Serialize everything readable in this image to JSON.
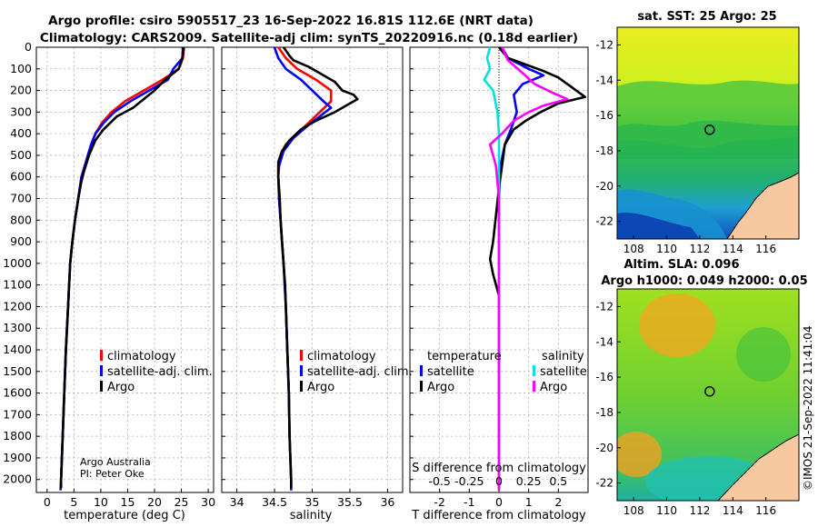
{
  "title": {
    "line1": "Argo profile: csiro 5905517_23 16-Sep-2022 16.81S 112.6E (NRT data)",
    "line2": "Climatology: CARS2009. Satellite-adj clim: synTS_20220916.nc (0.18d earlier)"
  },
  "credit": {
    "line1": "Argo Australia",
    "line2": "PI: Peter Oke"
  },
  "timestamp": "©IMOS 21-Sep-2022 11:41:04",
  "colors": {
    "climatology": "#ff0000",
    "satellite_adj": "#0000ff",
    "argo": "#000000",
    "sat_T": "#0000ff",
    "sat_S": "#00e0e0",
    "argo_S": "#ff00ff",
    "land": "#f8c8a0"
  },
  "chart_data": [
    {
      "type": "line",
      "panel": "temperature",
      "xlabel": "temperature (deg C)",
      "ylabel": "",
      "xlim": [
        -2,
        31
      ],
      "ylim": [
        2060,
        0
      ],
      "xticks": [
        0,
        5,
        10,
        15,
        20,
        25,
        30
      ],
      "yticks": [
        0,
        100,
        200,
        300,
        400,
        500,
        600,
        700,
        800,
        900,
        1000,
        1100,
        1200,
        1300,
        1400,
        1500,
        1600,
        1700,
        1800,
        1900,
        2000
      ],
      "legend": [
        "climatology",
        "satellite-adj. clim.",
        "Argo"
      ],
      "series": [
        {
          "name": "climatology",
          "color": "#ff0000",
          "points": [
            [
              25.5,
              0
            ],
            [
              25.3,
              50
            ],
            [
              24.5,
              100
            ],
            [
              21.5,
              150
            ],
            [
              18,
              200
            ],
            [
              14.5,
              250
            ],
            [
              12,
              300
            ],
            [
              10.2,
              350
            ],
            [
              9,
              400
            ],
            [
              8.2,
              450
            ],
            [
              7.6,
              500
            ],
            [
              7,
              550
            ],
            [
              6.4,
              600
            ],
            [
              5.8,
              700
            ],
            [
              5.2,
              800
            ],
            [
              4.7,
              900
            ],
            [
              4.3,
              1000
            ],
            [
              3.9,
              1200
            ],
            [
              3.5,
              1400
            ],
            [
              3.2,
              1600
            ],
            [
              2.9,
              1800
            ],
            [
              2.6,
              2000
            ],
            [
              2.5,
              2050
            ]
          ]
        },
        {
          "name": "satellite-adj. clim.",
          "color": "#0000ff",
          "points": [
            [
              25.3,
              0
            ],
            [
              25.2,
              50
            ],
            [
              23.5,
              100
            ],
            [
              22.5,
              150
            ],
            [
              19,
              200
            ],
            [
              15.5,
              250
            ],
            [
              12.5,
              300
            ],
            [
              10.5,
              350
            ],
            [
              9,
              400
            ],
            [
              8.2,
              450
            ],
            [
              7.6,
              500
            ],
            [
              7,
              550
            ],
            [
              6.4,
              600
            ],
            [
              5.8,
              700
            ],
            [
              5.2,
              800
            ],
            [
              4.7,
              900
            ],
            [
              4.3,
              1000
            ],
            [
              3.9,
              1200
            ],
            [
              3.5,
              1400
            ],
            [
              3.2,
              1600
            ],
            [
              2.9,
              1800
            ],
            [
              2.6,
              2000
            ],
            [
              2.5,
              2050
            ]
          ]
        },
        {
          "name": "Argo",
          "color": "#000000",
          "points": [
            [
              25.4,
              0
            ],
            [
              25.2,
              50
            ],
            [
              24.5,
              100
            ],
            [
              22,
              150
            ],
            [
              20,
              200
            ],
            [
              17.5,
              250
            ],
            [
              16,
              280
            ],
            [
              13,
              320
            ],
            [
              10.5,
              380
            ],
            [
              9,
              430
            ],
            [
              7.8,
              500
            ],
            [
              6.8,
              580
            ],
            [
              6.4,
              620
            ],
            [
              5.8,
              700
            ],
            [
              5.2,
              800
            ],
            [
              4.7,
              900
            ],
            [
              4.3,
              1000
            ],
            [
              3.9,
              1200
            ],
            [
              3.5,
              1400
            ],
            [
              3.2,
              1600
            ],
            [
              2.9,
              1800
            ],
            [
              2.6,
              2000
            ],
            [
              2.6,
              2040
            ]
          ]
        }
      ]
    },
    {
      "type": "line",
      "panel": "salinity",
      "xlabel": "salinity",
      "xlim": [
        33.8,
        36.2
      ],
      "ylim": [
        2060,
        0
      ],
      "xticks": [
        34,
        34.5,
        35,
        35.5,
        36
      ],
      "legend": [
        "climatology",
        "satellite-adj. clim.",
        "Argo"
      ],
      "series": [
        {
          "name": "climatology",
          "color": "#ff0000",
          "points": [
            [
              34.55,
              0
            ],
            [
              34.65,
              50
            ],
            [
              34.8,
              100
            ],
            [
              35.05,
              150
            ],
            [
              35.25,
              200
            ],
            [
              35.25,
              250
            ],
            [
              35.1,
              300
            ],
            [
              34.95,
              350
            ],
            [
              34.8,
              400
            ],
            [
              34.65,
              450
            ],
            [
              34.58,
              500
            ],
            [
              34.55,
              550
            ],
            [
              34.55,
              600
            ],
            [
              34.56,
              700
            ],
            [
              34.58,
              800
            ],
            [
              34.6,
              900
            ],
            [
              34.62,
              1000
            ],
            [
              34.65,
              1200
            ],
            [
              34.67,
              1400
            ],
            [
              34.69,
              1600
            ],
            [
              34.7,
              1800
            ],
            [
              34.72,
              2000
            ],
            [
              34.72,
              2050
            ]
          ]
        },
        {
          "name": "satellite-adj. clim.",
          "color": "#0000ff",
          "points": [
            [
              34.5,
              0
            ],
            [
              34.55,
              50
            ],
            [
              34.65,
              100
            ],
            [
              34.85,
              150
            ],
            [
              35,
              200
            ],
            [
              35.15,
              250
            ],
            [
              35.25,
              280
            ],
            [
              35.1,
              320
            ],
            [
              34.95,
              360
            ],
            [
              34.75,
              420
            ],
            [
              34.62,
              480
            ],
            [
              34.56,
              550
            ],
            [
              34.55,
              600
            ],
            [
              34.56,
              700
            ],
            [
              34.58,
              800
            ],
            [
              34.6,
              900
            ],
            [
              34.62,
              1000
            ],
            [
              34.65,
              1200
            ],
            [
              34.67,
              1400
            ],
            [
              34.69,
              1600
            ],
            [
              34.7,
              1800
            ],
            [
              34.72,
              2000
            ],
            [
              34.72,
              2050
            ]
          ]
        },
        {
          "name": "Argo",
          "color": "#000000",
          "points": [
            [
              34.62,
              0
            ],
            [
              34.7,
              40
            ],
            [
              34.75,
              60
            ],
            [
              34.95,
              90
            ],
            [
              35.1,
              120
            ],
            [
              35.3,
              160
            ],
            [
              35.4,
              200
            ],
            [
              35.55,
              220
            ],
            [
              35.6,
              240
            ],
            [
              35.45,
              270
            ],
            [
              35.3,
              300
            ],
            [
              35.05,
              340
            ],
            [
              34.85,
              380
            ],
            [
              34.7,
              430
            ],
            [
              34.6,
              480
            ],
            [
              34.55,
              530
            ],
            [
              34.55,
              600
            ],
            [
              34.57,
              700
            ],
            [
              34.58,
              800
            ],
            [
              34.6,
              900
            ],
            [
              34.62,
              1000
            ],
            [
              34.64,
              1100
            ],
            [
              34.65,
              1200
            ],
            [
              34.67,
              1400
            ],
            [
              34.69,
              1600
            ],
            [
              34.7,
              1800
            ],
            [
              34.72,
              2000
            ],
            [
              34.72,
              2040
            ]
          ]
        }
      ]
    },
    {
      "type": "line",
      "panel": "difference",
      "xlabel": "T difference from climatology",
      "xlabel2": "S difference from climatology",
      "xlim": [
        -3,
        3
      ],
      "ylim": [
        2060,
        0
      ],
      "xticks": [
        -2,
        -1,
        0,
        1,
        2
      ],
      "xticks_S": [
        -0.5,
        -0.25,
        0,
        0.25,
        0.5
      ],
      "xticklabels_S": [
        "-0.5",
        "-0.25",
        "0",
        "0.25",
        "0.5"
      ],
      "legend_T": {
        "title": "temperature",
        "items": [
          "satellite",
          "Argo"
        ]
      },
      "legend_S": {
        "title": "salinity",
        "items": [
          "satellite",
          "Argo"
        ]
      },
      "series": [
        {
          "name": "T satellite",
          "color": "#0000ff",
          "points": [
            [
              0.1,
              0
            ],
            [
              0.3,
              50
            ],
            [
              1,
              100
            ],
            [
              1.5,
              130
            ],
            [
              0.8,
              170
            ],
            [
              0.5,
              220
            ],
            [
              0.6,
              300
            ],
            [
              0.4,
              380
            ],
            [
              0.2,
              450
            ],
            [
              0.05,
              550
            ],
            [
              0,
              700
            ],
            [
              0,
              2050
            ]
          ]
        },
        {
          "name": "T Argo",
          "color": "#000000",
          "points": [
            [
              0,
              0
            ],
            [
              0.3,
              50
            ],
            [
              0.9,
              80
            ],
            [
              1.5,
              110
            ],
            [
              2,
              140
            ],
            [
              2.5,
              190
            ],
            [
              2.9,
              230
            ],
            [
              2,
              260
            ],
            [
              1.4,
              300
            ],
            [
              0.9,
              340
            ],
            [
              0.5,
              380
            ],
            [
              0.2,
              450
            ],
            [
              0.1,
              550
            ],
            [
              0,
              650
            ],
            [
              -0.2,
              900
            ],
            [
              -0.3,
              980
            ],
            [
              -0.2,
              1050
            ],
            [
              0,
              1150
            ],
            [
              0,
              2040
            ]
          ]
        },
        {
          "name": "S satellite",
          "color": "#00e0e0",
          "points": [
            [
              -0.3,
              0
            ],
            [
              -0.4,
              50
            ],
            [
              -0.3,
              100
            ],
            [
              -0.5,
              150
            ],
            [
              -0.2,
              200
            ],
            [
              -0.05,
              300
            ],
            [
              0,
              400
            ],
            [
              0,
              2050
            ]
          ]
        },
        {
          "name": "S Argo",
          "color": "#ff00ff",
          "points": [
            [
              0.1,
              0
            ],
            [
              0.3,
              60
            ],
            [
              0.8,
              120
            ],
            [
              1.2,
              170
            ],
            [
              1.8,
              210
            ],
            [
              2.3,
              240
            ],
            [
              1.5,
              270
            ],
            [
              1,
              300
            ],
            [
              0.5,
              340
            ],
            [
              0.1,
              400
            ],
            [
              -0.3,
              450
            ],
            [
              -0.1,
              550
            ],
            [
              0,
              700
            ],
            [
              0,
              2050
            ]
          ]
        }
      ]
    },
    {
      "type": "heatmap",
      "panel": "sst-map",
      "title": "sat. SST: 25 Argo: 25",
      "xlim": [
        107,
        118
      ],
      "ylim": [
        -23,
        -11
      ],
      "xticks": [
        108,
        110,
        112,
        114,
        116
      ],
      "yticks": [
        -12,
        -14,
        -16,
        -18,
        -20,
        -22
      ],
      "argo_position": [
        112.6,
        -16.81
      ]
    },
    {
      "type": "heatmap",
      "panel": "sla-map",
      "title": "Altim. SLA: 0.096",
      "subtitle": "Argo h1000: 0.049 h2000: 0.05",
      "xlim": [
        107,
        118
      ],
      "ylim": [
        -23,
        -11
      ],
      "xticks": [
        108,
        110,
        112,
        114,
        116
      ],
      "yticks": [
        -12,
        -14,
        -16,
        -18,
        -20,
        -22
      ],
      "argo_position": [
        112.6,
        -16.81
      ]
    }
  ]
}
